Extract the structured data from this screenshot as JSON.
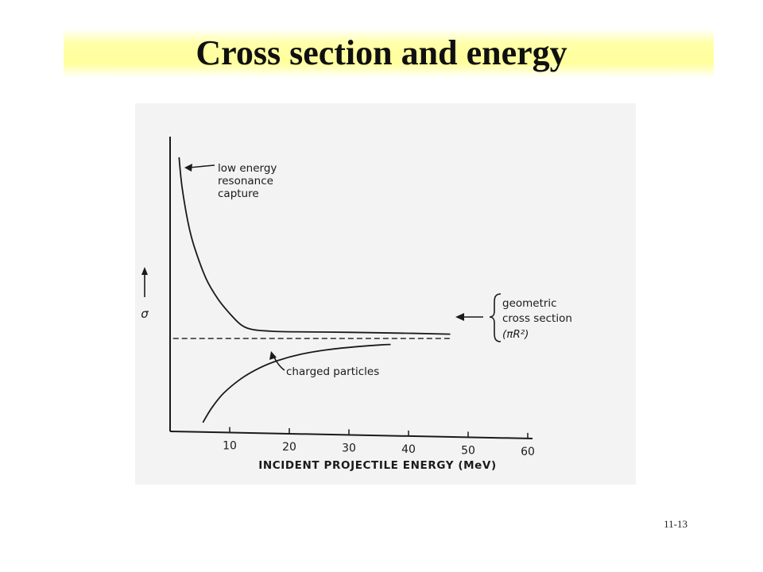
{
  "slide": {
    "title": "Cross section and energy",
    "page_number": "11-13"
  },
  "chart_data": {
    "type": "line",
    "title": "",
    "xlabel": "INCIDENT PROJECTILE ENERGY (MeV)",
    "ylabel": "σ",
    "xlim": [
      0,
      60
    ],
    "ylim": [
      0,
      10
    ],
    "x_ticks": [
      10,
      20,
      30,
      40,
      50,
      60
    ],
    "y_axis_arrow": "up",
    "grid": false,
    "legend": "none",
    "series": [
      {
        "name": "low energy resonance capture",
        "style": "solid",
        "x": [
          1.5,
          2,
          3,
          4,
          6,
          8,
          10,
          12,
          14,
          17,
          20,
          30,
          40,
          47
        ],
        "y": [
          9.3,
          8.3,
          7.1,
          6.3,
          5.2,
          4.5,
          4.0,
          3.6,
          3.45,
          3.4,
          3.38,
          3.36,
          3.33,
          3.3
        ]
      },
      {
        "name": "charged particles",
        "style": "solid",
        "x": [
          5.5,
          7,
          9,
          12,
          15,
          18,
          22,
          26,
          30,
          35,
          37
        ],
        "y": [
          0.3,
          0.8,
          1.3,
          1.8,
          2.15,
          2.4,
          2.62,
          2.76,
          2.85,
          2.93,
          2.95
        ]
      },
      {
        "name": "geometric cross section (πR²)",
        "style": "dashed",
        "x": [
          0.5,
          47
        ],
        "y": [
          3.15,
          3.15
        ]
      }
    ],
    "annotations": {
      "low_energy": [
        "low energy",
        "resonance",
        "capture"
      ],
      "charged": "charged particles",
      "geometric_line1": "geometric",
      "geometric_line2": "cross section",
      "geometric_formula": "(πR²)"
    },
    "colors": {
      "ink": "#1a1a1a",
      "figure_background": "#f3f3f3",
      "title_band": "#ffff9c"
    }
  }
}
